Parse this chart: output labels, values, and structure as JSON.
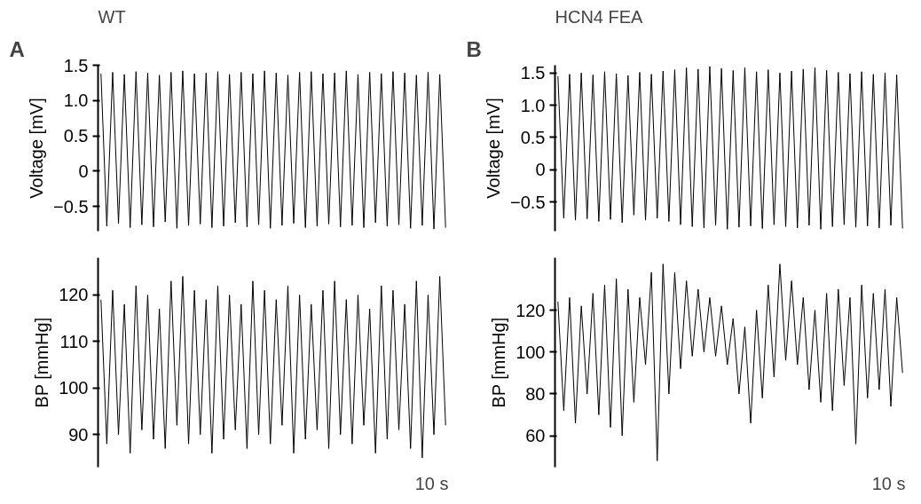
{
  "chart_data": [
    {
      "type": "line",
      "title": "WT",
      "ylabel": "Voltage [mV]",
      "annotations": [
        "A"
      ],
      "color": "#000000",
      "tick_labels": "y",
      "ylim": [
        -0.85,
        1.5
      ],
      "yticks": [
        -0.5,
        0,
        0.5,
        {
          "value": 1,
          "label": "1.0"
        },
        1.5
      ],
      "categories": [
        null,
        null,
        null,
        null,
        null,
        null,
        null,
        null,
        null,
        null,
        null,
        null,
        null,
        null,
        null,
        null,
        null,
        null,
        null,
        null,
        null,
        null,
        null,
        null,
        null,
        null,
        null,
        null,
        null,
        null,
        null,
        null,
        null,
        null,
        null,
        null,
        null,
        null,
        null,
        null,
        null,
        null,
        null,
        null,
        null,
        null,
        null,
        null,
        null,
        null,
        null,
        null,
        null,
        null,
        null,
        null,
        null,
        null,
        null,
        null
      ],
      "values": [
        1.38,
        -0.78,
        1.4,
        -0.74,
        1.37,
        -0.8,
        1.41,
        -0.76,
        1.39,
        -0.79,
        1.36,
        -0.72,
        1.4,
        -0.81,
        1.42,
        -0.77,
        1.38,
        -0.75,
        1.39,
        -0.8,
        1.41,
        -0.78,
        1.37,
        -0.73,
        1.4,
        -0.79,
        1.38,
        -0.76,
        1.42,
        -0.81,
        1.39,
        -0.77,
        1.36,
        -0.74,
        1.4,
        -0.8,
        1.41,
        -0.78,
        1.38,
        -0.75,
        1.39,
        -0.79,
        1.42,
        -0.77,
        1.37,
        -0.8,
        1.4,
        -0.73,
        1.38,
        -0.78,
        1.41,
        -0.76,
        1.39,
        -0.81,
        1.36,
        -0.77,
        1.4,
        -0.82,
        1.37,
        -0.8
      ]
    },
    {
      "type": "line",
      "title": "HCN4 FEA",
      "ylabel": "Voltage [mV]",
      "annotations": [
        "B"
      ],
      "color": "#000000",
      "tick_labels": "y",
      "ylim": [
        -0.95,
        1.62
      ],
      "yticks": [
        -0.5,
        0,
        0.5,
        {
          "value": 1,
          "label": "1.0"
        },
        1.5
      ],
      "categories": [
        null,
        null,
        null,
        null,
        null,
        null,
        null,
        null,
        null,
        null,
        null,
        null,
        null,
        null,
        null,
        null,
        null,
        null,
        null,
        null,
        null,
        null,
        null,
        null,
        null,
        null,
        null,
        null,
        null,
        null,
        null,
        null,
        null,
        null,
        null,
        null,
        null,
        null,
        null,
        null,
        null,
        null,
        null,
        null,
        null,
        null,
        null,
        null,
        null,
        null,
        null,
        null,
        null,
        null,
        null,
        null,
        null,
        null,
        null,
        null
      ],
      "values": [
        1.45,
        -0.75,
        1.48,
        -0.78,
        1.5,
        -0.76,
        1.47,
        -0.8,
        1.52,
        -0.77,
        1.49,
        -0.82,
        1.46,
        -0.7,
        1.51,
        -0.78,
        1.48,
        -0.75,
        1.53,
        -0.8,
        1.55,
        -0.85,
        1.58,
        -0.88,
        1.56,
        -0.9,
        1.6,
        -0.86,
        1.57,
        -0.92,
        1.54,
        -0.89,
        1.58,
        -0.87,
        1.52,
        -0.91,
        1.55,
        -0.85,
        1.5,
        -0.88,
        1.53,
        -0.9,
        1.56,
        -0.86,
        1.58,
        -0.92,
        1.54,
        -0.88,
        1.51,
        -0.85,
        1.49,
        -0.89,
        1.52,
        -0.87,
        1.48,
        -0.9,
        1.5,
        -0.86,
        1.47,
        -0.91
      ]
    },
    {
      "type": "line",
      "ylabel": "BP [mmHg]",
      "annotations": [
        "10 s"
      ],
      "color": "#000000",
      "tick_labels": "y",
      "ylim": [
        83,
        128
      ],
      "yticks": [
        90,
        100,
        110,
        120
      ],
      "categories": [
        null,
        null,
        null,
        null,
        null,
        null,
        null,
        null,
        null,
        null,
        null,
        null,
        null,
        null,
        null,
        null,
        null,
        null,
        null,
        null,
        null,
        null,
        null,
        null,
        null,
        null,
        null,
        null,
        null,
        null,
        null,
        null,
        null,
        null,
        null,
        null,
        null,
        null,
        null,
        null,
        null,
        null,
        null,
        null,
        null,
        null,
        null,
        null,
        null,
        null,
        null,
        null,
        null,
        null,
        null,
        null,
        null,
        null,
        null,
        null
      ],
      "values": [
        119,
        88,
        121,
        90,
        118,
        86,
        122,
        91,
        120,
        89,
        117,
        87,
        123,
        92,
        124,
        88,
        121,
        90,
        119,
        86,
        122,
        89,
        120,
        91,
        118,
        87,
        123,
        90,
        121,
        88,
        119,
        92,
        122,
        86,
        120,
        89,
        118,
        91,
        121,
        87,
        123,
        90,
        119,
        88,
        120,
        92,
        117,
        86,
        122,
        89,
        121,
        91,
        118,
        87,
        123,
        85,
        120,
        90,
        124,
        92
      ]
    },
    {
      "type": "line",
      "ylabel": "BP [mmHg]",
      "annotations": [
        "10 s"
      ],
      "color": "#000000",
      "tick_labels": "y",
      "ylim": [
        45,
        145
      ],
      "yticks": [
        60,
        80,
        100,
        120
      ],
      "categories": [
        null,
        null,
        null,
        null,
        null,
        null,
        null,
        null,
        null,
        null,
        null,
        null,
        null,
        null,
        null,
        null,
        null,
        null,
        null,
        null,
        null,
        null,
        null,
        null,
        null,
        null,
        null,
        null,
        null,
        null,
        null,
        null,
        null,
        null,
        null,
        null,
        null,
        null,
        null,
        null,
        null,
        null,
        null,
        null,
        null,
        null,
        null,
        null,
        null,
        null,
        null,
        null,
        null,
        null,
        null,
        null,
        null,
        null,
        null,
        null
      ],
      "values": [
        124,
        72,
        126,
        66,
        122,
        80,
        128,
        70,
        132,
        64,
        135,
        60,
        130,
        76,
        126,
        94,
        138,
        48,
        142,
        80,
        138,
        92,
        134,
        98,
        130,
        100,
        126,
        98,
        122,
        94,
        116,
        80,
        112,
        66,
        120,
        78,
        132,
        88,
        142,
        96,
        134,
        94,
        126,
        82,
        120,
        76,
        128,
        72,
        130,
        84,
        126,
        56,
        132,
        78,
        128,
        82,
        130,
        74,
        126,
        90
      ]
    }
  ]
}
